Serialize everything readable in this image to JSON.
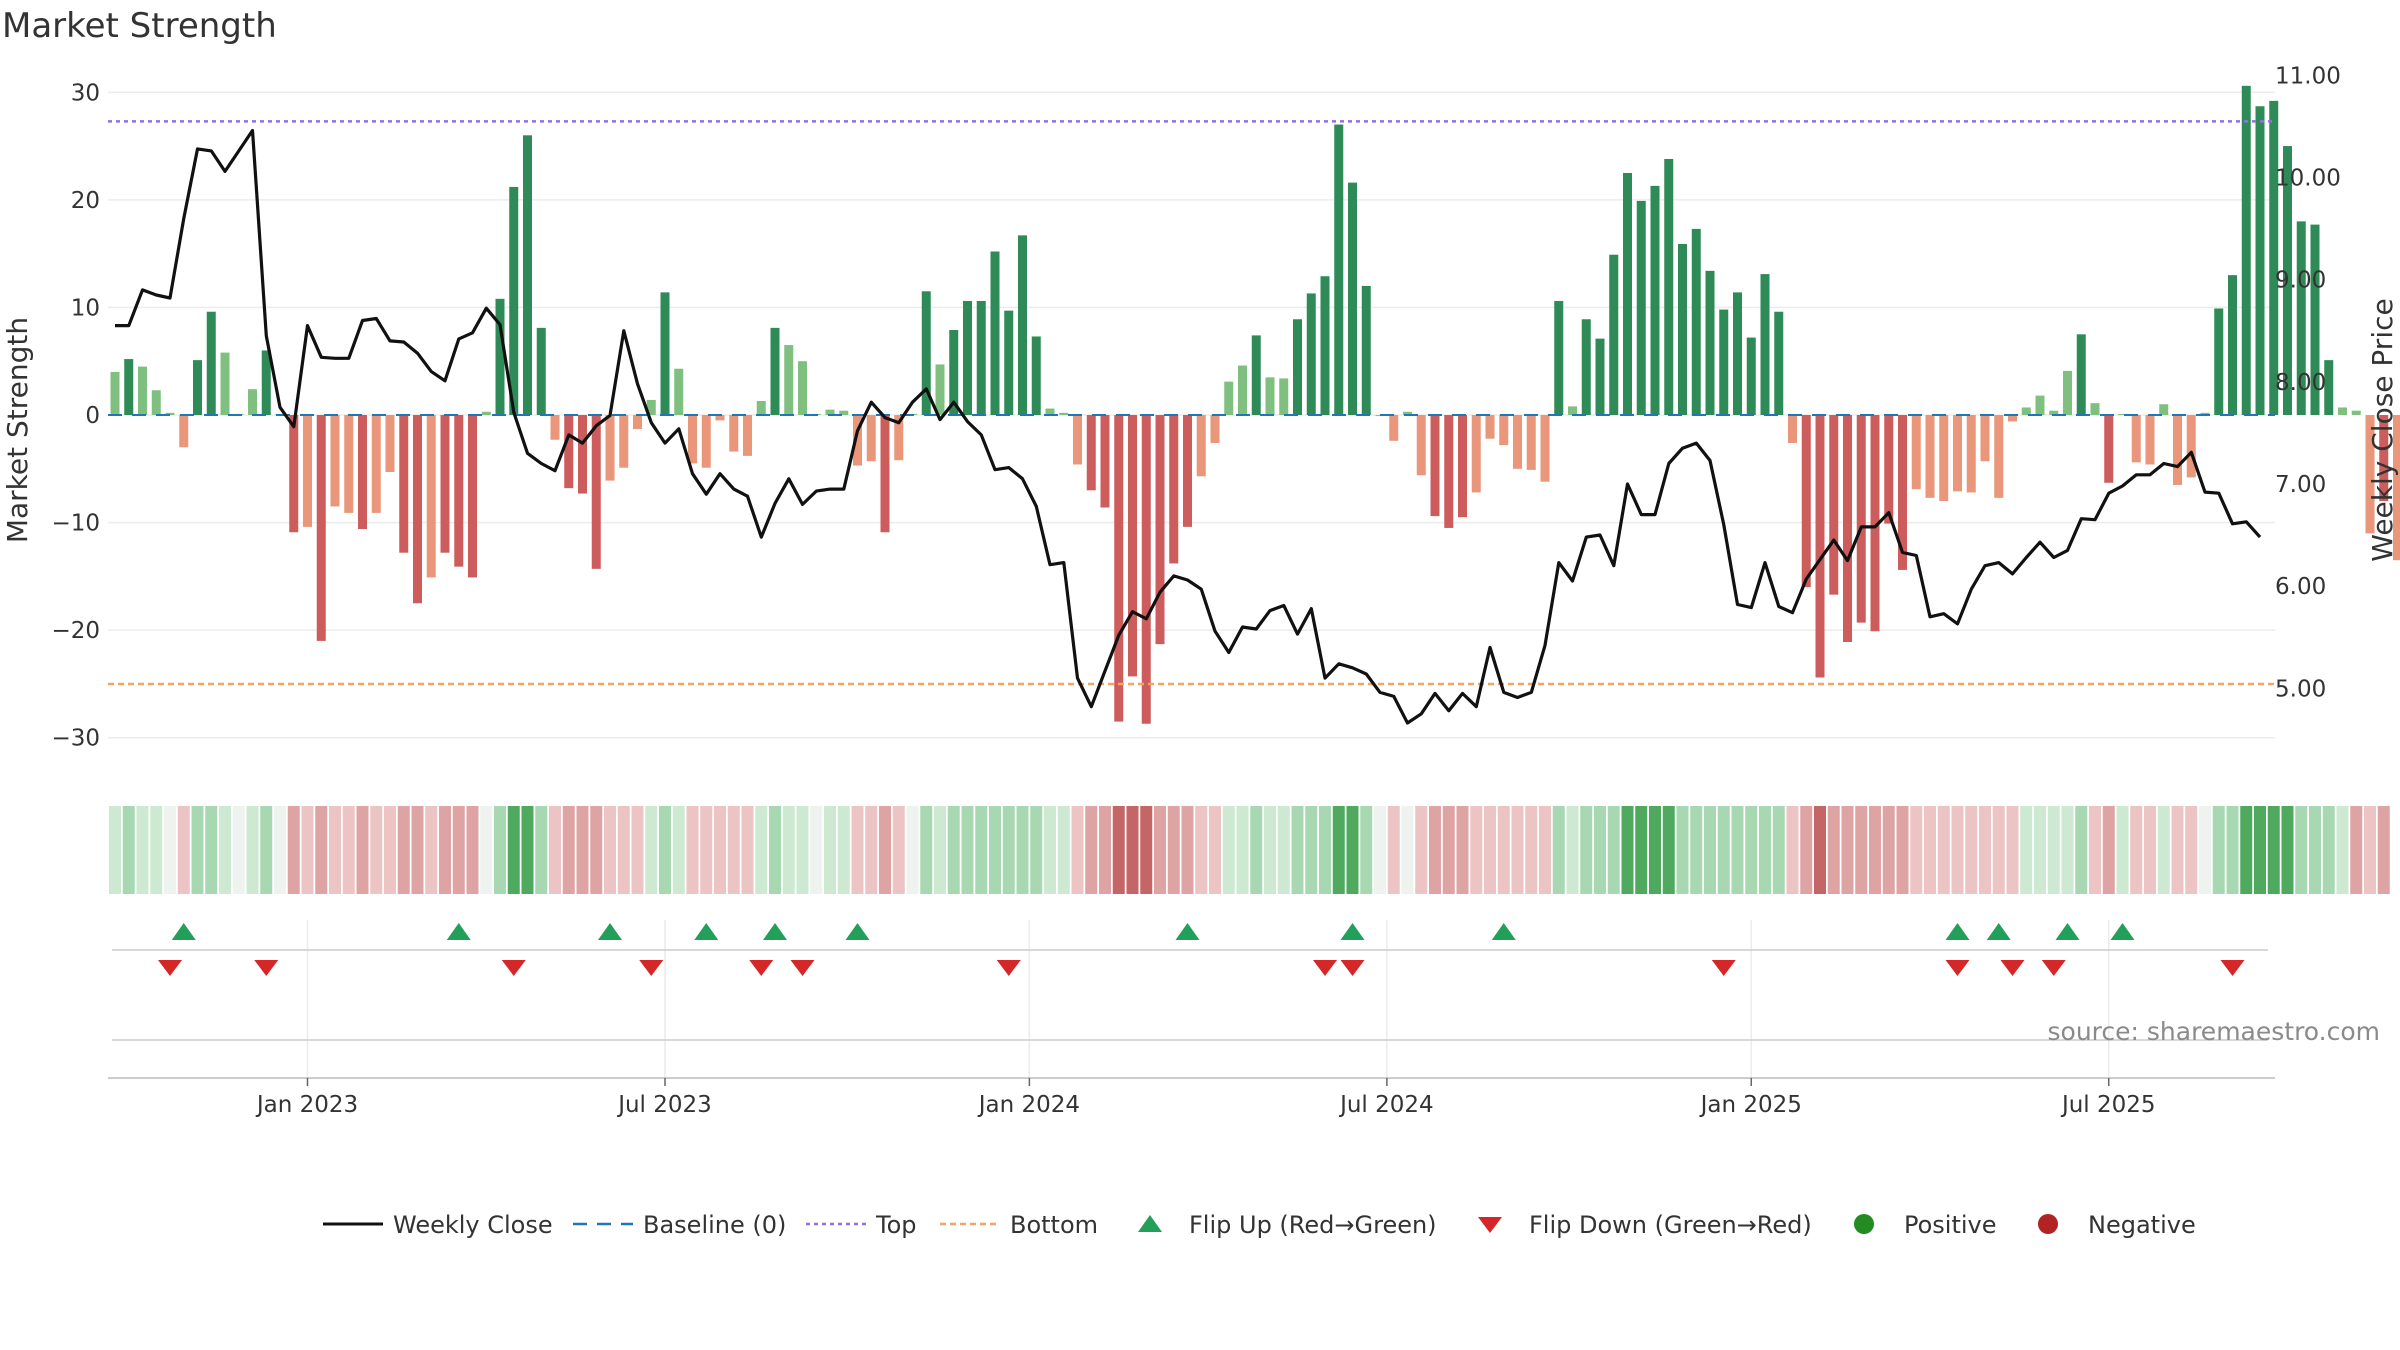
{
  "chart_data": {
    "type": "bar",
    "title": "Market Strength",
    "ylabel_left": "Market Strength",
    "ylabel_right": "Weekly Close Price",
    "ylim_left": [
      -33,
      33
    ],
    "ylim_right": [
      4.2,
      11.15
    ],
    "yticks_left": [
      "30",
      "20",
      "10",
      "0",
      "−10",
      "−20",
      "−30"
    ],
    "yticks_left_values": [
      30,
      20,
      10,
      0,
      -10,
      -20,
      -30
    ],
    "yticks_right": [
      "11.00",
      "10.00",
      "9.00",
      "8.00",
      "7.00",
      "6.00",
      "5.00"
    ],
    "yticks_right_values": [
      11,
      10,
      9,
      8,
      7,
      6,
      5
    ],
    "x_start": "2022-09-26",
    "x_step_weeks": 1,
    "xticks": [
      {
        "label": "Jan 2023",
        "week": 14
      },
      {
        "label": "Jul 2023",
        "week": 40
      },
      {
        "label": "Jan 2024",
        "week": 66.5
      },
      {
        "label": "Jul 2024",
        "week": 92.5
      },
      {
        "label": "Jan 2025",
        "week": 119
      },
      {
        "label": "Jul 2025",
        "week": 145
      }
    ],
    "top_threshold": 27.3,
    "bottom_threshold": -25,
    "strength": [
      4,
      5.2,
      4.5,
      2.3,
      0.2,
      -3,
      5.1,
      9.6,
      5.8,
      0.1,
      2.4,
      6,
      0.1,
      -10.9,
      -10.4,
      -21,
      -8.5,
      -9.1,
      -10.6,
      -9.1,
      -5.3,
      -12.8,
      -17.5,
      -15.1,
      -12.8,
      -14.1,
      -15.1,
      0.3,
      10.8,
      21.2,
      26,
      8.1,
      -2.3,
      -6.8,
      -7.3,
      -14.3,
      -6.1,
      -4.9,
      -1.3,
      1.4,
      11.4,
      4.3,
      -4.5,
      -4.9,
      -0.5,
      -3.4,
      -3.8,
      1.3,
      8.1,
      6.5,
      5,
      0.1,
      0.5,
      0.4,
      -4.7,
      -4.3,
      -10.9,
      -4.2,
      0.1,
      11.5,
      4.7,
      7.9,
      10.6,
      10.6,
      15.2,
      9.7,
      16.7,
      7.3,
      0.6,
      0.2,
      -4.6,
      -7,
      -8.6,
      -28.5,
      -24.3,
      -28.7,
      -21.3,
      -13.8,
      -10.4,
      -5.7,
      -2.6,
      3.1,
      4.6,
      7.4,
      3.5,
      3.4,
      8.9,
      11.3,
      12.9,
      27,
      21.6,
      12,
      -0.1,
      -2.4,
      0.3,
      -5.6,
      -9.4,
      -10.5,
      -9.5,
      -7.2,
      -2.2,
      -2.8,
      -5,
      -5.1,
      -6.2,
      10.6,
      0.8,
      8.9,
      7.1,
      14.9,
      22.5,
      19.9,
      21.3,
      23.8,
      15.9,
      17.3,
      13.4,
      9.8,
      11.4,
      7.2,
      13.1,
      9.6,
      -2.6,
      -16,
      -24.4,
      -16.7,
      -21.1,
      -19.3,
      -20.1,
      -10.1,
      -14.4,
      -6.9,
      -7.7,
      -8,
      -7.1,
      -7.2,
      -4.3,
      -7.7,
      -0.6,
      0.7,
      1.8,
      0.4,
      4.1,
      7.5,
      1.1,
      -6.3,
      0.1,
      -4.4,
      -4.6,
      1,
      -6.5,
      -5.8,
      0.2,
      9.9,
      13,
      30.6,
      28.7,
      29.2,
      25,
      18,
      17.7,
      5.1,
      0.7,
      0.4,
      -11,
      -8,
      -13.5
    ],
    "weekly_close": [
      8.55,
      8.55,
      8.9,
      8.85,
      8.82,
      9.6,
      10.28,
      10.26,
      10.06,
      10.26,
      10.46,
      8.45,
      7.75,
      7.56,
      8.55,
      8.24,
      8.23,
      8.23,
      8.6,
      8.62,
      8.4,
      8.39,
      8.28,
      8.1,
      8.01,
      8.42,
      8.48,
      8.72,
      8.56,
      7.7,
      7.3,
      7.2,
      7.13,
      7.48,
      7.4,
      7.57,
      7.67,
      8.5,
      7.98,
      7.6,
      7.4,
      7.54,
      7.1,
      6.9,
      7.1,
      6.95,
      6.88,
      6.48,
      6.81,
      7.05,
      6.8,
      6.93,
      6.95,
      6.95,
      7.52,
      7.8,
      7.65,
      7.6,
      7.8,
      7.93,
      7.63,
      7.8,
      7.61,
      7.48,
      7.14,
      7.16,
      7.05,
      6.78,
      6.21,
      6.23,
      5.1,
      4.82,
      5.17,
      5.52,
      5.75,
      5.68,
      5.94,
      6.1,
      6.06,
      5.97,
      5.56,
      5.35,
      5.6,
      5.58,
      5.76,
      5.81,
      5.53,
      5.78,
      5.1,
      5.24,
      5.2,
      5.14,
      4.96,
      4.92,
      4.66,
      4.75,
      4.95,
      4.78,
      4.95,
      4.82,
      5.4,
      4.96,
      4.91,
      4.96,
      5.42,
      6.23,
      6.05,
      6.48,
      6.5,
      6.2,
      7.0,
      6.7,
      6.7,
      7.2,
      7.35,
      7.4,
      7.23,
      6.6,
      5.82,
      5.79,
      6.23,
      5.8,
      5.74,
      6.07,
      6.26,
      6.45,
      6.25,
      6.58,
      6.58,
      6.72,
      6.33,
      6.3,
      5.7,
      5.73,
      5.63,
      5.97,
      6.2,
      6.23,
      6.12,
      6.28,
      6.43,
      6.28,
      6.35,
      6.66,
      6.65,
      6.91,
      6.98,
      7.09,
      7.09,
      7.2,
      7.17,
      7.31,
      6.92,
      6.91,
      6.61,
      6.63,
      6.48
    ],
    "shading_levels": [
      1,
      2,
      1,
      1,
      0,
      -1,
      2,
      2,
      1,
      0,
      1,
      2,
      0,
      -2,
      -1,
      -2,
      -1,
      -1,
      -2,
      -1,
      -1,
      -2,
      -2,
      -1,
      -2,
      -2,
      -2,
      0,
      2,
      3,
      3,
      2,
      -1,
      -2,
      -2,
      -2,
      -1,
      -1,
      -1,
      1,
      2,
      1,
      -1,
      -1,
      -1,
      -1,
      -1,
      1,
      2,
      1,
      1,
      0,
      1,
      1,
      -1,
      -1,
      -2,
      -1,
      0,
      2,
      1,
      2,
      2,
      2,
      2,
      2,
      2,
      2,
      1,
      1,
      -1,
      -2,
      -2,
      -3,
      -3,
      -3,
      -2,
      -2,
      -2,
      -1,
      -1,
      1,
      1,
      2,
      1,
      1,
      2,
      2,
      2,
      3,
      3,
      2,
      0,
      -1,
      0,
      -1,
      -2,
      -2,
      -2,
      -1,
      -1,
      -1,
      -1,
      -1,
      -1,
      2,
      1,
      2,
      2,
      2,
      3,
      3,
      3,
      3,
      2,
      2,
      2,
      2,
      2,
      2,
      2,
      2,
      -1,
      -2,
      -3,
      -2,
      -2,
      -2,
      -2,
      -2,
      -2,
      -1,
      -1,
      -1,
      -1,
      -1,
      -1,
      -1,
      -1,
      1,
      1,
      1,
      1,
      2,
      -1,
      -2,
      1,
      -1,
      -1,
      1,
      -1,
      -1,
      0,
      2,
      2,
      3,
      3,
      3,
      3,
      2,
      2,
      2,
      1,
      -2,
      -1,
      -2
    ],
    "flip_up_weeks": [
      5,
      25,
      36,
      43,
      48,
      54,
      78,
      90,
      101,
      134,
      137,
      142,
      146
    ],
    "flip_down_weeks": [
      4,
      11,
      29,
      39,
      47,
      50,
      65,
      88,
      90,
      117,
      134,
      138,
      141,
      154
    ],
    "legend": [
      "Weekly Close",
      "Baseline (0)",
      "Top",
      "Bottom",
      "Flip Up (Red→Green)",
      "Flip Down (Green→Red)",
      "Positive",
      "Negative"
    ],
    "source_note": "source: sharemaestro.com"
  },
  "colors": {
    "strong_green": "#2e8b57",
    "light_green": "#7fbf7f",
    "strong_red": "#cd5c5c",
    "light_red": "#e9967a",
    "top_line": "#9370db",
    "bottom_line": "#f4a460",
    "baseline": "#1f77b4",
    "close_line": "#111111",
    "flip_up": "#22a05a",
    "flip_down": "#d62728",
    "positive_dot": "#228b22",
    "negative_dot": "#b22222"
  }
}
